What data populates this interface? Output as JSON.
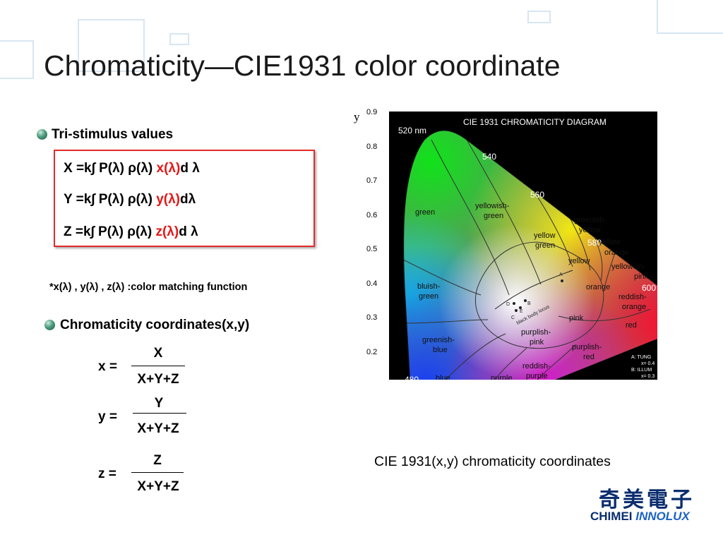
{
  "slide": {
    "title": "Chromaticity—CIE1931 color coordinate",
    "tristimulus": {
      "heading": "Tri-stimulus values",
      "equations": [
        {
          "prefix": "X =k∫ P(λ) ρ(λ) ",
          "fn": "x(λ)",
          "suffix": "d λ"
        },
        {
          "prefix": "Y =k∫ P(λ) ρ(λ) ",
          "fn": "y(λ)",
          "suffix": "dλ"
        },
        {
          "prefix": "Z =k∫ P(λ) ρ(λ) ",
          "fn": "z(λ)",
          "suffix": "d λ"
        }
      ],
      "note": "*x(λ) , y(λ) , z(λ) :color matching function"
    },
    "coordinates": {
      "heading": "Chromaticity coordinates(x,y)",
      "fractions": [
        {
          "lhs": "x =",
          "numerator": "X",
          "denominator": "X+Y+Z"
        },
        {
          "lhs": "y =",
          "numerator": "Y",
          "denominator": "X+Y+Z"
        },
        {
          "lhs": "z =",
          "numerator": "Z",
          "denominator": "X+Y+Z"
        }
      ]
    },
    "figure": {
      "axis_label": "y",
      "y_ticks": [
        "0.9",
        "0.8",
        "0.7",
        "0.6",
        "0.5",
        "0.4",
        "0.3",
        "0.2"
      ],
      "caption": "CIE 1931(x,y) chromaticity coordinates",
      "diagram": {
        "title": "CIE 1931 CHROMATICITY DIAGRAM",
        "wavelengths": [
          "520 nm",
          "540",
          "560",
          "580",
          "600",
          "480"
        ],
        "regions": [
          "green",
          "yellowish-",
          "green",
          "greenish-",
          "yellow",
          "yellow",
          "green",
          "yellow",
          "orange",
          "yellow",
          "yellowish-",
          "pink",
          "bluish-",
          "green",
          "orange",
          "reddish-",
          "orange",
          "pink",
          "red",
          "greenish-",
          "blue",
          "purplish-",
          "pink",
          "purplish-",
          "red",
          "reddish-",
          "purple",
          "blue",
          "purple"
        ],
        "points": [
          "A",
          "B",
          "C",
          "D",
          "E"
        ],
        "locus_label": "black body locus",
        "legend": [
          "A: TUNG",
          "x= 0.4",
          "B: ILLUM",
          "x= 0.3"
        ]
      }
    },
    "logo": {
      "chinese": "奇美電子",
      "english_part1": "CHIMEI ",
      "english_part2": "INNOLUX"
    }
  }
}
